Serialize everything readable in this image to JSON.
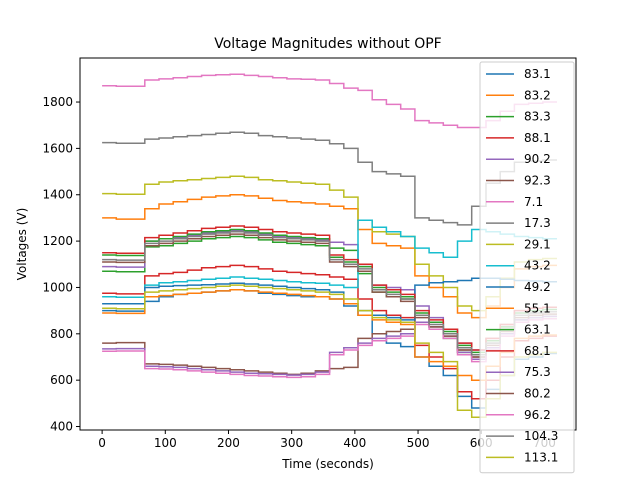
{
  "chart_data": {
    "type": "line",
    "title": "Voltage Magnitudes without OPF",
    "xlabel": "Time (seconds)",
    "ylabel": "Voltages (V)",
    "xlim": [
      -35,
      750
    ],
    "ylim": [
      385,
      1990
    ],
    "xticks": [
      0,
      100,
      200,
      300,
      400,
      500,
      600,
      700
    ],
    "yticks": [
      400,
      600,
      800,
      1000,
      1200,
      1400,
      1600,
      1800
    ],
    "grid": false,
    "legend_position": "upper-right",
    "series": [
      {
        "name": "83.1",
        "color": "#1f77b4",
        "values": [
          930,
          930,
          930,
          940,
          960,
          970,
          975,
          980,
          985,
          990,
          985,
          975,
          970,
          965,
          960,
          960,
          950,
          930,
          880,
          800,
          760,
          745,
          700,
          660,
          620,
          530,
          480,
          560,
          620,
          690,
          700,
          715
        ]
      },
      {
        "name": "83.2",
        "color": "#ff7f0e",
        "values": [
          1300,
          1295,
          1295,
          1340,
          1360,
          1370,
          1380,
          1390,
          1395,
          1400,
          1395,
          1385,
          1375,
          1370,
          1365,
          1360,
          1350,
          1340,
          1250,
          1190,
          1180,
          1170,
          1050,
          1000,
          960,
          890,
          870,
          920,
          1000,
          1080,
          1090,
          1095
        ]
      },
      {
        "name": "83.3",
        "color": "#2ca02c",
        "values": [
          1070,
          1068,
          1068,
          1175,
          1180,
          1190,
          1200,
          1210,
          1215,
          1220,
          1215,
          1205,
          1195,
          1190,
          1185,
          1180,
          1170,
          1160,
          1060,
          980,
          960,
          950,
          880,
          830,
          780,
          720,
          690,
          740,
          800,
          860,
          870,
          875
        ]
      },
      {
        "name": "88.1",
        "color": "#d62728",
        "values": [
          975,
          972,
          972,
          1050,
          1060,
          1065,
          1075,
          1085,
          1090,
          1095,
          1090,
          1080,
          1070,
          1065,
          1060,
          1055,
          1045,
          1035,
          950,
          900,
          880,
          870,
          750,
          700,
          650,
          550,
          520,
          600,
          700,
          770,
          780,
          790
        ]
      },
      {
        "name": "90.2",
        "color": "#9467bd",
        "values": [
          1090,
          1088,
          1088,
          1200,
          1210,
          1215,
          1225,
          1235,
          1240,
          1245,
          1240,
          1230,
          1220,
          1215,
          1210,
          1205,
          1195,
          1185,
          1090,
          1010,
          1000,
          990,
          920,
          870,
          820,
          760,
          730,
          780,
          840,
          900,
          910,
          915
        ]
      },
      {
        "name": "92.3",
        "color": "#8c564b",
        "values": [
          760,
          762,
          762,
          670,
          668,
          665,
          660,
          655,
          650,
          645,
          640,
          635,
          630,
          625,
          630,
          640,
          650,
          655,
          780,
          800,
          810,
          820,
          880,
          850,
          800,
          730,
          700,
          760,
          830,
          880,
          890,
          895
        ]
      },
      {
        "name": "7.1",
        "color": "#e377c2",
        "values": [
          1870,
          1868,
          1868,
          1895,
          1900,
          1905,
          1910,
          1915,
          1918,
          1920,
          1915,
          1910,
          1905,
          1900,
          1898,
          1895,
          1880,
          1860,
          1850,
          1810,
          1790,
          1770,
          1720,
          1710,
          1700,
          1690,
          1690,
          1720,
          1760,
          1790,
          1795,
          1800
        ]
      },
      {
        "name": "17.3",
        "color": "#7f7f7f",
        "values": [
          1625,
          1622,
          1622,
          1640,
          1645,
          1650,
          1655,
          1660,
          1665,
          1670,
          1665,
          1655,
          1650,
          1645,
          1640,
          1635,
          1620,
          1600,
          1540,
          1500,
          1490,
          1480,
          1300,
          1290,
          1280,
          1270,
          1350,
          1450,
          1500,
          1540,
          1545,
          1550
        ]
      },
      {
        "name": "29.1",
        "color": "#bcbd22",
        "values": [
          1405,
          1402,
          1402,
          1445,
          1455,
          1460,
          1465,
          1470,
          1475,
          1480,
          1475,
          1465,
          1460,
          1455,
          1450,
          1445,
          1420,
          1390,
          1290,
          1240,
          1230,
          1220,
          1100,
          1050,
          1000,
          920,
          900,
          960,
          1040,
          1110,
          1120,
          1125
        ]
      },
      {
        "name": "43.2",
        "color": "#17becf",
        "values": [
          960,
          958,
          958,
          1010,
          1020,
          1025,
          1030,
          1035,
          1040,
          1045,
          1040,
          1035,
          1030,
          1025,
          1020,
          1018,
          1010,
          1000,
          1290,
          1260,
          1240,
          1220,
          1170,
          1150,
          1130,
          1200,
          1250,
          1240,
          1230,
          1220,
          1215,
          1210
        ]
      },
      {
        "name": "49.2",
        "color": "#1f77b4",
        "values": [
          900,
          898,
          898,
          1000,
          1005,
          1008,
          1010,
          1012,
          1015,
          1018,
          1015,
          1010,
          1005,
          1000,
          995,
          990,
          980,
          920,
          900,
          880,
          870,
          860,
          1010,
          1020,
          1025,
          1030,
          1040,
          1040,
          1035,
          1030,
          1028,
          1025
        ]
      },
      {
        "name": "55.1",
        "color": "#ff7f0e",
        "values": [
          890,
          888,
          888,
          960,
          965,
          970,
          975,
          980,
          985,
          990,
          985,
          980,
          975,
          970,
          965,
          960,
          950,
          930,
          880,
          860,
          850,
          840,
          700,
          680,
          660,
          620,
          600,
          660,
          720,
          780,
          790,
          795
        ]
      },
      {
        "name": "63.1",
        "color": "#2ca02c",
        "values": [
          1140,
          1138,
          1138,
          1200,
          1210,
          1220,
          1230,
          1240,
          1245,
          1250,
          1245,
          1235,
          1225,
          1220,
          1215,
          1210,
          1130,
          1110,
          1090,
          1000,
          980,
          960,
          890,
          850,
          810,
          750,
          720,
          770,
          830,
          890,
          900,
          905
        ]
      },
      {
        "name": "68.1",
        "color": "#d62728",
        "values": [
          1150,
          1148,
          1148,
          1215,
          1225,
          1235,
          1245,
          1255,
          1260,
          1265,
          1260,
          1250,
          1240,
          1235,
          1230,
          1225,
          1140,
          1120,
          1100,
          1010,
          990,
          970,
          900,
          860,
          820,
          760,
          730,
          780,
          840,
          900,
          910,
          915
        ]
      },
      {
        "name": "75.3",
        "color": "#9467bd",
        "values": [
          735,
          736,
          736,
          660,
          658,
          655,
          650,
          645,
          640,
          635,
          630,
          628,
          625,
          622,
          625,
          635,
          720,
          740,
          760,
          780,
          790,
          800,
          850,
          830,
          790,
          720,
          690,
          740,
          800,
          860,
          870,
          875
        ]
      },
      {
        "name": "80.2",
        "color": "#8c564b",
        "values": [
          1110,
          1108,
          1108,
          1180,
          1190,
          1200,
          1210,
          1220,
          1225,
          1230,
          1225,
          1215,
          1205,
          1200,
          1195,
          1190,
          1110,
          1090,
          1070,
          980,
          960,
          940,
          870,
          830,
          790,
          730,
          700,
          750,
          810,
          870,
          880,
          885
        ]
      },
      {
        "name": "96.2",
        "color": "#e377c2",
        "values": [
          725,
          726,
          726,
          650,
          648,
          645,
          640,
          635,
          630,
          625,
          620,
          618,
          615,
          612,
          615,
          625,
          710,
          730,
          750,
          770,
          780,
          790,
          840,
          820,
          780,
          710,
          680,
          730,
          790,
          850,
          860,
          865
        ]
      },
      {
        "name": "104.3",
        "color": "#7f7f7f",
        "values": [
          1120,
          1118,
          1118,
          1190,
          1200,
          1210,
          1220,
          1230,
          1235,
          1240,
          1235,
          1225,
          1215,
          1210,
          1205,
          1200,
          1120,
          1100,
          1080,
          990,
          970,
          950,
          880,
          840,
          800,
          740,
          710,
          760,
          820,
          880,
          890,
          895
        ]
      },
      {
        "name": "113.1",
        "color": "#bcbd22",
        "values": [
          910,
          908,
          908,
          980,
          985,
          990,
          995,
          1000,
          1005,
          1010,
          1005,
          1000,
          995,
          990,
          985,
          980,
          970,
          950,
          900,
          870,
          860,
          850,
          760,
          720,
          680,
          470,
          440,
          520,
          620,
          700,
          710,
          720
        ]
      }
    ],
    "x_step": 22.5
  }
}
